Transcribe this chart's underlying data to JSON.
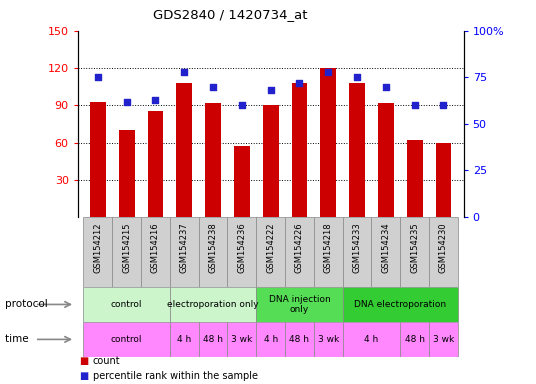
{
  "title": "GDS2840 / 1420734_at",
  "samples": [
    "GSM154212",
    "GSM154215",
    "GSM154216",
    "GSM154237",
    "GSM154238",
    "GSM154236",
    "GSM154222",
    "GSM154226",
    "GSM154218",
    "GSM154233",
    "GSM154234",
    "GSM154235",
    "GSM154230"
  ],
  "counts": [
    93,
    70,
    85,
    108,
    92,
    57,
    90,
    108,
    120,
    108,
    92,
    62,
    60
  ],
  "percentiles": [
    75,
    62,
    63,
    78,
    70,
    60,
    68,
    72,
    78,
    75,
    70,
    60,
    60
  ],
  "ylim_left": [
    0,
    150
  ],
  "ylim_right": [
    0,
    100
  ],
  "yticks_left": [
    30,
    60,
    90,
    120,
    150
  ],
  "yticks_right": [
    0,
    25,
    50,
    75,
    100
  ],
  "bar_color": "#cc0000",
  "dot_color": "#2222cc",
  "label_box_color": "#d0d0d0",
  "protocol_row": [
    {
      "label": "control",
      "start": 0,
      "end": 3,
      "color": "#ccf5cc"
    },
    {
      "label": "electroporation only",
      "start": 3,
      "end": 6,
      "color": "#ccf5cc"
    },
    {
      "label": "DNA injection\nonly",
      "start": 6,
      "end": 9,
      "color": "#55dd55"
    },
    {
      "label": "DNA electroporation",
      "start": 9,
      "end": 13,
      "color": "#33cc33"
    }
  ],
  "time_row": [
    {
      "label": "control",
      "start": 0,
      "end": 3
    },
    {
      "label": "4 h",
      "start": 3,
      "end": 4
    },
    {
      "label": "48 h",
      "start": 4,
      "end": 5
    },
    {
      "label": "3 wk",
      "start": 5,
      "end": 6
    },
    {
      "label": "4 h",
      "start": 6,
      "end": 7
    },
    {
      "label": "48 h",
      "start": 7,
      "end": 8
    },
    {
      "label": "3 wk",
      "start": 8,
      "end": 9
    },
    {
      "label": "4 h",
      "start": 9,
      "end": 11
    },
    {
      "label": "48 h",
      "start": 11,
      "end": 12
    },
    {
      "label": "3 wk",
      "start": 12,
      "end": 13
    }
  ],
  "time_color": "#ff88ff",
  "bg_color": "#ffffff"
}
